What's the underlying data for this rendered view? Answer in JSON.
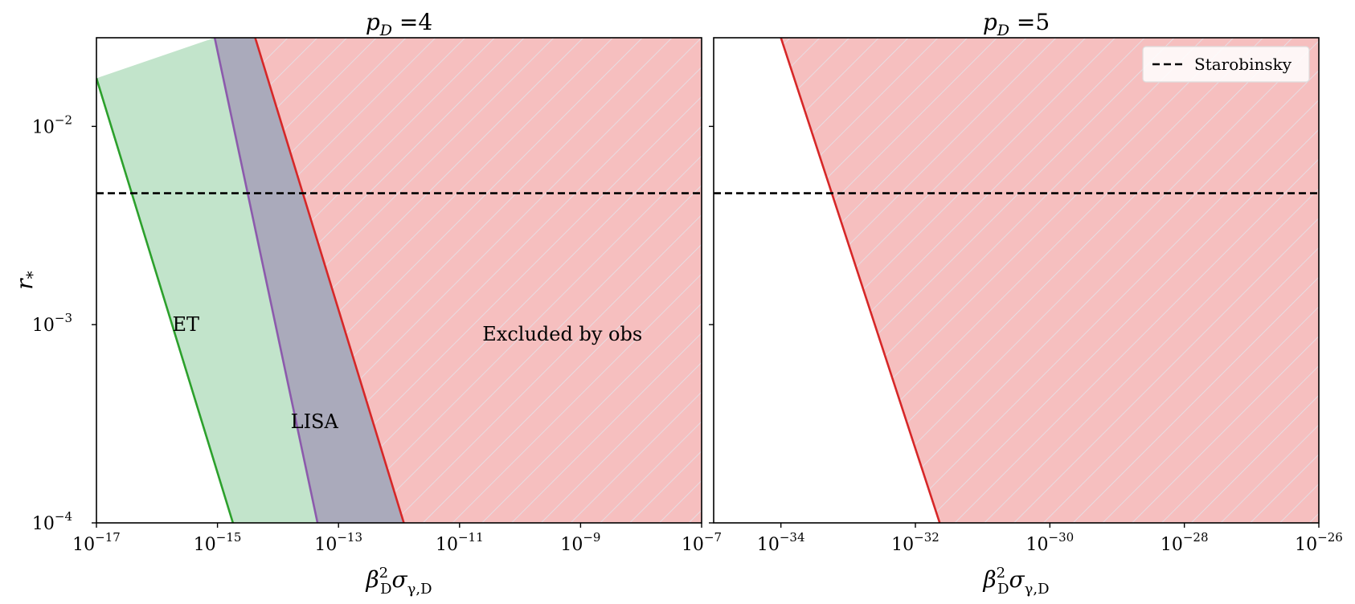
{
  "chart_data": [
    {
      "type": "area",
      "title": "p_D =4",
      "title_parts": {
        "symbol": "p",
        "subscript": "D",
        "rest": " =4"
      },
      "ylabel": "r*",
      "ylabel_parts": {
        "symbol": "r",
        "subscript": "*"
      },
      "xlabel": "β_D^2 σ_γ,D",
      "xlabel_parts": {
        "beta": "β",
        "sup": "2",
        "sub_d": "D",
        "sigma": "σ",
        "sub_sigma": "γ,D"
      },
      "xscale": "log",
      "yscale": "log",
      "xlim": [
        1e-17,
        1e-07
      ],
      "ylim": [
        0.0001,
        0.028
      ],
      "x_ticks": [
        {
          "value": 1e-17,
          "base": "10",
          "exp": "−17"
        },
        {
          "value": 1e-15,
          "base": "10",
          "exp": "−15"
        },
        {
          "value": 1e-13,
          "base": "10",
          "exp": "−13"
        },
        {
          "value": 1e-11,
          "base": "10",
          "exp": "−11"
        },
        {
          "value": 1e-09,
          "base": "10",
          "exp": "−9"
        },
        {
          "value": 1e-07,
          "base": "10",
          "exp": "−7"
        }
      ],
      "y_ticks": [
        {
          "value": 0.01,
          "base": "10",
          "exp": "−2"
        },
        {
          "value": 0.001,
          "base": "10",
          "exp": "−3"
        },
        {
          "value": 0.0001,
          "base": "10",
          "exp": "−4"
        }
      ],
      "horizontal_line": {
        "name": "Starobinsky",
        "y": 0.0046,
        "style": "dashed",
        "color": "#000000"
      },
      "regions": [
        {
          "name": "ET",
          "color": "#c2e4cb",
          "edge_color": "#2ca02c",
          "left_line": [
            [
              1e-17,
              0.0175
            ],
            [
              1.8e-15,
              0.0001
            ]
          ],
          "right_line": [
            [
              9e-16,
              0.028
            ],
            [
              4.5e-14,
              0.0001
            ]
          ]
        },
        {
          "name": "LISA",
          "color": "#aaaabb",
          "edge_color": "#8c5aac",
          "left_line": [
            [
              9e-16,
              0.028
            ],
            [
              4.5e-14,
              0.0001
            ]
          ],
          "right_line": [
            [
              4.2e-15,
              0.028
            ],
            [
              1.2e-12,
              0.0001
            ]
          ]
        },
        {
          "name": "Excluded by obs",
          "color": "#f6bfbf",
          "edge_color": "#d62728",
          "hatch": "/",
          "left_line": [
            [
              4.2e-15,
              0.028
            ],
            [
              1.2e-12,
              0.0001
            ]
          ]
        }
      ],
      "annotations": [
        {
          "text": "ET",
          "x": 3e-16,
          "y": 0.00093
        },
        {
          "text": "LISA",
          "x": 4e-14,
          "y": 0.0003
        },
        {
          "text": "Excluded by obs",
          "x": 5e-10,
          "y": 0.00083
        }
      ]
    },
    {
      "type": "area",
      "title": "p_D =5",
      "title_parts": {
        "symbol": "p",
        "subscript": "D",
        "rest": " =5"
      },
      "xlabel": "β_D^2 σ_γ,D",
      "xlabel_parts": {
        "beta": "β",
        "sup": "2",
        "sub_d": "D",
        "sigma": "σ",
        "sub_sigma": "γ,D"
      },
      "xscale": "log",
      "yscale": "log",
      "xlim": [
        1e-35,
        1e-26
      ],
      "ylim": [
        0.0001,
        0.028
      ],
      "x_ticks": [
        {
          "value": 1e-34,
          "base": "10",
          "exp": "−34"
        },
        {
          "value": 1e-32,
          "base": "10",
          "exp": "−32"
        },
        {
          "value": 1e-30,
          "base": "10",
          "exp": "−30"
        },
        {
          "value": 1e-28,
          "base": "10",
          "exp": "−28"
        },
        {
          "value": 1e-26,
          "base": "10",
          "exp": "−26"
        }
      ],
      "horizontal_line": {
        "name": "Starobinsky",
        "y": 0.0046,
        "style": "dashed",
        "color": "#000000"
      },
      "regions": [
        {
          "name": "Excluded by obs",
          "color": "#f6bfbf",
          "edge_color": "#d62728",
          "hatch": "/",
          "left_line": [
            [
              1e-34,
              0.028
            ],
            [
              2.3e-32,
              0.0001
            ]
          ]
        }
      ],
      "legend": {
        "placement": "top-right",
        "entries": [
          {
            "label": "Starobinsky",
            "style": "dashed",
            "color": "#000000"
          }
        ]
      }
    }
  ]
}
